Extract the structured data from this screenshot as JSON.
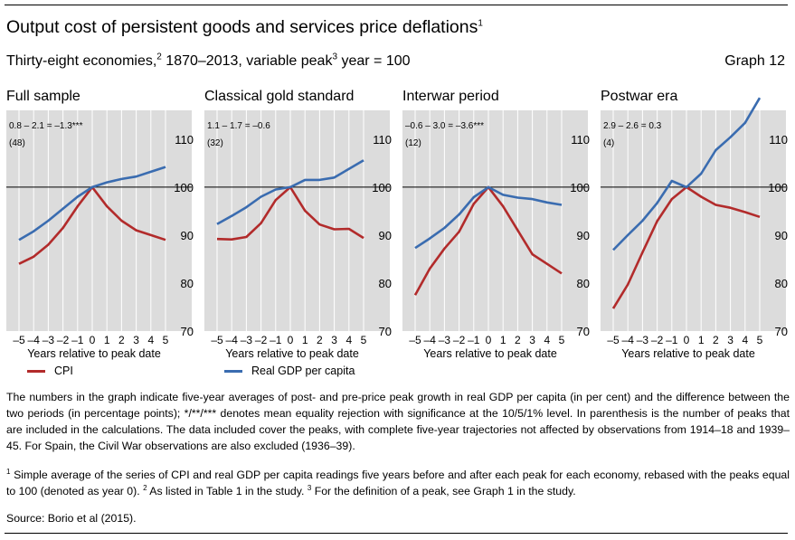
{
  "header": {
    "title": "Output cost of persistent goods and services price deflations",
    "title_sup": "1",
    "subtitle_a": "Thirty-eight economies,",
    "subtitle_sup_a": "2",
    "subtitle_b": " 1870–2013, variable peak",
    "subtitle_sup_b": "3",
    "subtitle_c": " year = 100",
    "graph_label": "Graph 12"
  },
  "legend": {
    "cpi": "CPI",
    "gdp": "Real GDP per capita"
  },
  "colors": {
    "cpi": "#b22b2b",
    "gdp": "#3a6cb0",
    "panel_bg": "#dcdcdc",
    "grid": "#ffffff"
  },
  "notes": "The numbers in the graph indicate five-year averages of post- and pre-price peak growth in real GDP per capita (in per cent) and the difference between the two periods (in percentage points); */**/*** denotes mean equality rejection with significance at the 10/5/1% level. In parenthesis is the number of peaks that are included in the calculations. The data included cover the peaks, with complete five-year trajectories not affected by observations from 1914–18 and 1939–45. For Spain, the Civil War observations are also excluded (1936–39).",
  "footnotes": {
    "f1_sup": "1",
    "f1": "  Simple average of the series of CPI and real GDP per capita readings five years before and after each peak for each economy, rebased with the peaks equal to 100 (denoted as year 0).",
    "f2_sup": "2",
    "f2": "  As listed in Table 1 in the study.",
    "f3_sup": "3",
    "f3": "  For the definition of a peak, see Graph 1 in the study."
  },
  "source": "Source: Borio et al (2015).",
  "chart_data": [
    {
      "type": "line",
      "title": "Full sample",
      "annotation": "0.8 – 2.1 = –1.3***",
      "count": "(48)",
      "xlabel": "Years relative to peak date",
      "x": [
        -5,
        -4,
        -3,
        -2,
        -1,
        0,
        1,
        2,
        3,
        4,
        5
      ],
      "x_tick_labels": [
        "–5",
        "–4",
        "–3",
        "–2",
        "–1",
        "0",
        "1",
        "2",
        "3",
        "4",
        "5"
      ],
      "ylim": [
        70,
        116
      ],
      "y_ticks": [
        70,
        80,
        90,
        100,
        110
      ],
      "series": [
        {
          "name": "CPI",
          "values": [
            84,
            85.5,
            88,
            91.5,
            96,
            100,
            96,
            93,
            91,
            90,
            89
          ]
        },
        {
          "name": "Real GDP per capita",
          "values": [
            89,
            90.8,
            93,
            95.5,
            98,
            100,
            101,
            101.7,
            102.2,
            103.2,
            104.2
          ]
        }
      ]
    },
    {
      "type": "line",
      "title": "Classical gold standard",
      "annotation": "1.1 – 1.7 = –0.6",
      "count": "(32)",
      "xlabel": "Years relative to peak date",
      "x": [
        -5,
        -4,
        -3,
        -2,
        -1,
        0,
        1,
        2,
        3,
        4,
        5
      ],
      "x_tick_labels": [
        "–5",
        "–4",
        "–3",
        "–2",
        "–1",
        "0",
        "1",
        "2",
        "3",
        "4",
        "5"
      ],
      "ylim": [
        70,
        116
      ],
      "y_ticks": [
        70,
        80,
        90,
        100,
        110
      ],
      "series": [
        {
          "name": "CPI",
          "values": [
            89.2,
            89.1,
            89.6,
            92.5,
            97.3,
            100,
            95.1,
            92.2,
            91.2,
            91.3,
            89.4
          ]
        },
        {
          "name": "Real GDP per capita",
          "values": [
            92.3,
            94,
            95.8,
            98,
            99.5,
            100,
            101.5,
            101.5,
            102,
            103.8,
            105.6
          ]
        }
      ]
    },
    {
      "type": "line",
      "title": "Interwar period",
      "annotation": "–0.6 – 3.0 = –3.6***",
      "count": "(12)",
      "xlabel": "Years relative to peak date",
      "x": [
        -5,
        -4,
        -3,
        -2,
        -1,
        0,
        1,
        2,
        3,
        4,
        5
      ],
      "x_tick_labels": [
        "–5",
        "–4",
        "–3",
        "–2",
        "–1",
        "0",
        "1",
        "2",
        "3",
        "4",
        "5"
      ],
      "ylim": [
        70,
        116
      ],
      "y_ticks": [
        70,
        80,
        90,
        100,
        110
      ],
      "series": [
        {
          "name": "CPI",
          "values": [
            77.5,
            83,
            87.2,
            90.7,
            96.5,
            100,
            96,
            91,
            86,
            84,
            82
          ]
        },
        {
          "name": "Real GDP per capita",
          "values": [
            87.3,
            89.3,
            91.5,
            94.3,
            97.9,
            100,
            98.4,
            97.8,
            97.5,
            96.8,
            96.3
          ]
        }
      ]
    },
    {
      "type": "line",
      "title": "Postwar era",
      "annotation": "2.9 – 2.6 = 0.3",
      "count": "(4)",
      "xlabel": "Years relative to peak date",
      "x": [
        -5,
        -4,
        -3,
        -2,
        -1,
        0,
        1,
        2,
        3,
        4,
        5
      ],
      "x_tick_labels": [
        "–5",
        "–4",
        "–3",
        "–2",
        "–1",
        "0",
        "1",
        "2",
        "3",
        "4",
        "5"
      ],
      "ylim": [
        70,
        116
      ],
      "y_ticks": [
        70,
        80,
        90,
        100,
        110
      ],
      "series": [
        {
          "name": "CPI",
          "values": [
            74.7,
            79.7,
            86.4,
            92.9,
            97.5,
            100,
            98,
            96.3,
            95.7,
            94.8,
            93.8
          ]
        },
        {
          "name": "Real GDP per capita",
          "values": [
            86.9,
            90,
            93,
            96.7,
            101.3,
            100,
            102.8,
            107.7,
            110.4,
            113.4,
            118.6
          ]
        }
      ]
    }
  ]
}
